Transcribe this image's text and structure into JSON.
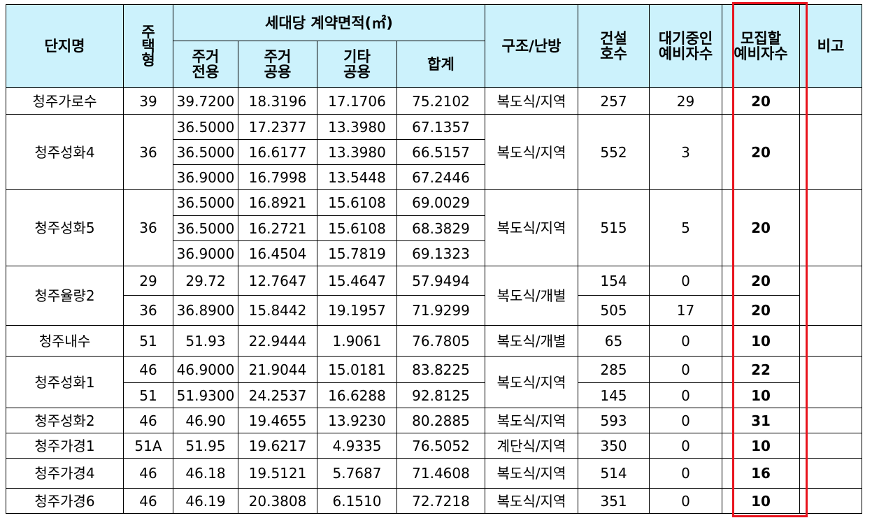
{
  "header": {
    "complex": "단지명",
    "housing_type": "주\n택\n형",
    "area_group": "세대당 계약면적(㎡)",
    "res_exclusive": "주거\n전용",
    "res_common": "주거\n공용",
    "other_common": "기타\n공용",
    "total": "합계",
    "structure": "구조/난방",
    "households": "건설\n호수",
    "waiting": "대기중인\n예비자수",
    "recruit": "모집할\n예비자수",
    "remarks": "비고"
  },
  "complexes": [
    {
      "name": "청주가로수",
      "structure": "복도식/지역",
      "rows": [
        {
          "type": "39",
          "excl": "39.7200",
          "comm": "18.3196",
          "other": "17.1706",
          "total": "75.2102",
          "households": "257",
          "waiting": "29",
          "recruit": "20"
        }
      ]
    },
    {
      "name": "청주성화4",
      "structure": "복도식/지역",
      "type": "36",
      "households": "552",
      "waiting": "3",
      "recruit": "20",
      "rows": [
        {
          "excl": "36.5000",
          "comm": "17.2377",
          "other": "13.3980",
          "total": "67.1357"
        },
        {
          "excl": "36.5000",
          "comm": "16.6177",
          "other": "13.3980",
          "total": "66.5157"
        },
        {
          "excl": "36.9000",
          "comm": "16.7998",
          "other": "13.5448",
          "total": "67.2446"
        }
      ]
    },
    {
      "name": "청주성화5",
      "structure": "복도식/지역",
      "type": "36",
      "households": "515",
      "waiting": "5",
      "recruit": "20",
      "rows": [
        {
          "excl": "36.5000",
          "comm": "16.8921",
          "other": "15.6108",
          "total": "69.0029"
        },
        {
          "excl": "36.5000",
          "comm": "16.2721",
          "other": "15.6108",
          "total": "68.3829"
        },
        {
          "excl": "36.9000",
          "comm": "16.4504",
          "other": "15.7819",
          "total": "69.1323"
        }
      ]
    },
    {
      "name": "청주율량2",
      "structure": "복도식/개별",
      "rows": [
        {
          "type": "29",
          "excl": "29.72",
          "comm": "12.7647",
          "other": "15.4647",
          "total": "57.9494",
          "households": "154",
          "waiting": "0",
          "recruit": "20"
        },
        {
          "type": "36",
          "excl": "36.8900",
          "comm": "15.8442",
          "other": "19.1957",
          "total": "71.9299",
          "households": "505",
          "waiting": "17",
          "recruit": "20"
        }
      ]
    },
    {
      "name": "청주내수",
      "structure": "복도식/개별",
      "rows": [
        {
          "type": "51",
          "excl": "51.93",
          "comm": "22.9444",
          "other": "1.9061",
          "total": "76.7805",
          "households": "65",
          "waiting": "0",
          "recruit": "10"
        }
      ]
    },
    {
      "name": "청주성화1",
      "structure": "복도식/지역",
      "rows": [
        {
          "type": "46",
          "excl": "46.9000",
          "comm": "21.9044",
          "other": "15.0181",
          "total": "83.8225",
          "households": "285",
          "waiting": "0",
          "recruit": "22"
        },
        {
          "type": "51",
          "excl": "51.9300",
          "comm": "24.2537",
          "other": "16.6288",
          "total": "92.8125",
          "households": "145",
          "waiting": "0",
          "recruit": "10"
        }
      ]
    },
    {
      "name": "청주성화2",
      "structure": "복도식/지역",
      "rows": [
        {
          "type": "46",
          "excl": "46.90",
          "comm": "19.4655",
          "other": "13.9230",
          "total": "80.2885",
          "households": "593",
          "waiting": "0",
          "recruit": "31"
        }
      ]
    },
    {
      "name": "청주가경1",
      "structure": "계단식/지역",
      "rows": [
        {
          "type": "51A",
          "excl": "51.95",
          "comm": "19.6217",
          "other": "4.9335",
          "total": "76.5052",
          "households": "350",
          "waiting": "0",
          "recruit": "10"
        }
      ]
    },
    {
      "name": "청주가경4",
      "structure": "복도식/지역",
      "rows": [
        {
          "type": "46",
          "excl": "46.18",
          "comm": "19.5121",
          "other": "5.7687",
          "total": "71.4608",
          "households": "514",
          "waiting": "0",
          "recruit": "16"
        }
      ]
    },
    {
      "name": "청주가경6",
      "structure": "복도식/지역",
      "rows": [
        {
          "type": "46",
          "excl": "46.19",
          "comm": "20.3808",
          "other": "6.1510",
          "total": "72.7218",
          "households": "351",
          "waiting": "0",
          "recruit": "10"
        }
      ]
    }
  ],
  "colors": {
    "header_bg": "#ccf2fc",
    "highlight_border": "#e8141e"
  }
}
